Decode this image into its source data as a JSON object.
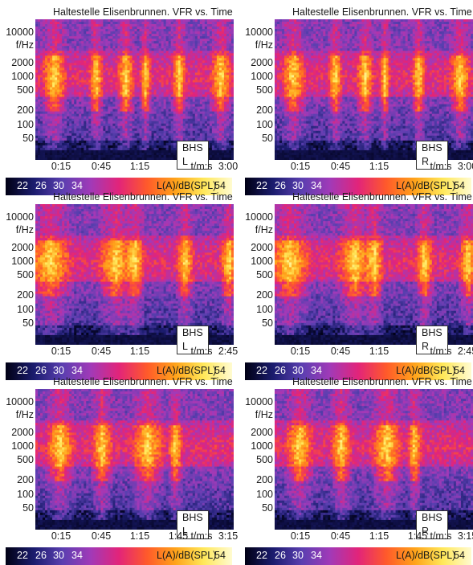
{
  "panels": [
    {
      "title": "Haltestelle Elisenbrunnen. VFR vs. Time",
      "channel": "BHS L",
      "x_ticks": [
        "0:15",
        "0:45",
        "1:15",
        "t/m:s",
        "3:00"
      ],
      "duration": "3:00"
    },
    {
      "title": "Haltestelle Elisenbrunnen. VFR vs. Time",
      "channel": "BHS R",
      "x_ticks": [
        "0:15",
        "0:45",
        "1:15",
        "t/m:s",
        "3:00"
      ],
      "duration": "3:00"
    },
    {
      "title": "Haltestelle Elisenbrunnen. VFR vs. Time",
      "channel": "BHS L",
      "x_ticks": [
        "0:15",
        "0:45",
        "1:15",
        "t/m:s",
        "2:45"
      ],
      "duration": "2:45"
    },
    {
      "title": "Haltestelle Elisenbrunnen. VFR vs. Time",
      "channel": "BHS R",
      "x_ticks": [
        "0:15",
        "0:45",
        "1:15",
        "t/m:s",
        "2:45"
      ],
      "duration": "2:45"
    },
    {
      "title": "Haltestelle Elisenbrunnen. VFR vs. Time",
      "channel": "BHS L",
      "x_ticks": [
        "0:15",
        "0:45",
        "1:15",
        "1:45",
        "t/m:s",
        "3:15"
      ],
      "duration": "3:15"
    },
    {
      "title": "Haltestelle Elisenbrunnen. VFR vs. Time",
      "channel": "BHS R",
      "x_ticks": [
        "0:15",
        "0:45",
        "1:15",
        "1:45",
        "t/m:s",
        "3:15"
      ],
      "duration": "3:15"
    }
  ],
  "y_ticks": [
    "10000",
    "f/Hz",
    "2000",
    "1000",
    "500",
    "200",
    "100",
    "50"
  ],
  "colorbar": {
    "labels": [
      "22",
      "26",
      "30",
      "34",
      "L(A)/dB(SPL)",
      "54"
    ],
    "colors": [
      "#000014",
      "#1b1c6e",
      "#5a3fb0",
      "#a13ab8",
      "#e2247a",
      "#ff5a2a",
      "#ffa31a",
      "#ffe85a",
      "#fffbd0"
    ]
  },
  "chart_data": [
    {
      "type": "heatmap",
      "title": "Haltestelle Elisenbrunnen. VFR vs. Time",
      "channel": "BHS L",
      "xlabel": "t/m:s",
      "ylabel": "f/Hz",
      "x_range": [
        "0:00",
        "3:00"
      ],
      "y_scale": "log",
      "z_label": "L(A)/dB(SPL)",
      "z_ticks": [
        22,
        26,
        30,
        34,
        54
      ]
    },
    {
      "type": "heatmap",
      "title": "Haltestelle Elisenbrunnen. VFR vs. Time",
      "channel": "BHS R",
      "xlabel": "t/m:s",
      "ylabel": "f/Hz",
      "x_range": [
        "0:00",
        "3:00"
      ],
      "y_scale": "log",
      "z_label": "L(A)/dB(SPL)",
      "z_ticks": [
        22,
        26,
        30,
        34,
        54
      ]
    },
    {
      "type": "heatmap",
      "title": "Haltestelle Elisenbrunnen. VFR vs. Time",
      "channel": "BHS L",
      "xlabel": "t/m:s",
      "ylabel": "f/Hz",
      "x_range": [
        "0:00",
        "2:45"
      ],
      "y_scale": "log",
      "z_label": "L(A)/dB(SPL)",
      "z_ticks": [
        22,
        26,
        30,
        34,
        54
      ]
    },
    {
      "type": "heatmap",
      "title": "Haltestelle Elisenbrunnen. VFR vs. Time",
      "channel": "BHS R",
      "xlabel": "t/m:s",
      "ylabel": "f/Hz",
      "x_range": [
        "0:00",
        "2:45"
      ],
      "y_scale": "log",
      "z_label": "L(A)/dB(SPL)",
      "z_ticks": [
        22,
        26,
        30,
        34,
        54
      ]
    },
    {
      "type": "heatmap",
      "title": "Haltestelle Elisenbrunnen. VFR vs. Time",
      "channel": "BHS L",
      "xlabel": "t/m:s",
      "ylabel": "f/Hz",
      "x_range": [
        "0:00",
        "3:15"
      ],
      "y_scale": "log",
      "z_label": "L(A)/dB(SPL)",
      "z_ticks": [
        22,
        26,
        30,
        34,
        54
      ]
    },
    {
      "type": "heatmap",
      "title": "Haltestelle Elisenbrunnen. VFR vs. Time",
      "channel": "BHS R",
      "xlabel": "t/m:s",
      "ylabel": "f/Hz",
      "x_range": [
        "0:00",
        "3:15"
      ],
      "y_scale": "log",
      "z_label": "L(A)/dB(SPL)",
      "z_ticks": [
        22,
        26,
        30,
        34,
        54
      ]
    }
  ]
}
